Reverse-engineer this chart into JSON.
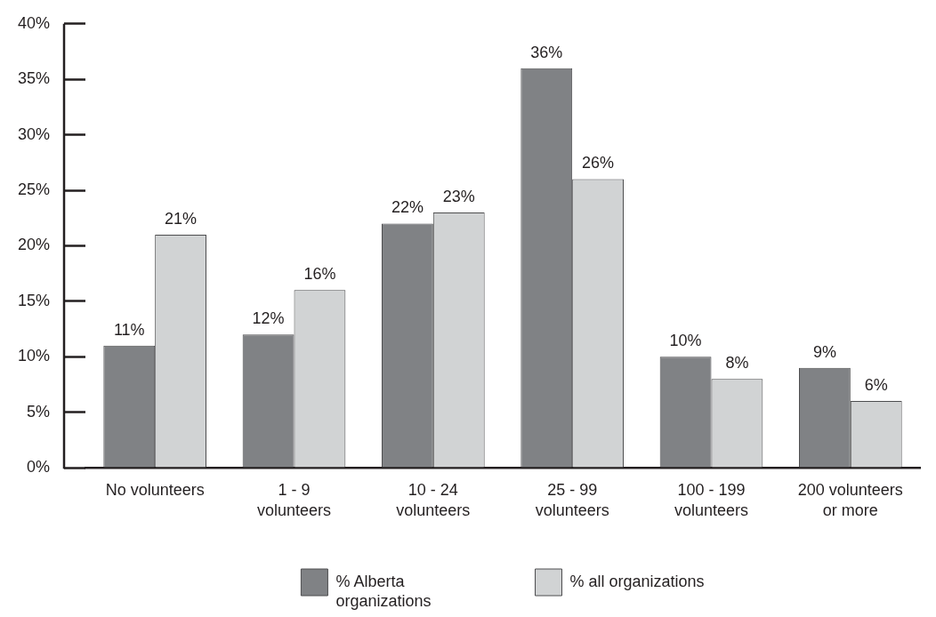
{
  "chart_data": {
    "type": "bar",
    "categories": [
      "No volunteers",
      "1 - 9\nvolunteers",
      "10 - 24\nvolunteers",
      "25 - 99\nvolunteers",
      "100 - 199\nvolunteers",
      "200 volunteers\nor more"
    ],
    "series": [
      {
        "name": "% Alberta organizations",
        "color": "#808285",
        "values": [
          11,
          12,
          22,
          36,
          10,
          9
        ],
        "value_labels": [
          "11%",
          "12%",
          "22%",
          "36%",
          "10%",
          "9%"
        ]
      },
      {
        "name": "% all organizations",
        "color": "#d1d3d4",
        "values": [
          21,
          16,
          23,
          26,
          8,
          6
        ],
        "value_labels": [
          "21%",
          "16%",
          "23%",
          "26%",
          "8%",
          "6%"
        ]
      }
    ],
    "ylim": [
      0,
      40
    ],
    "yticks": [
      {
        "value": 0,
        "label": "0%"
      },
      {
        "value": 5,
        "label": "5%"
      },
      {
        "value": 10,
        "label": "10%"
      },
      {
        "value": 15,
        "label": "15%"
      },
      {
        "value": 20,
        "label": "20%"
      },
      {
        "value": 25,
        "label": "25%"
      },
      {
        "value": 30,
        "label": "30%"
      },
      {
        "value": 35,
        "label": "35%"
      },
      {
        "value": 40,
        "label": "40%"
      }
    ],
    "legend": "bottom"
  }
}
